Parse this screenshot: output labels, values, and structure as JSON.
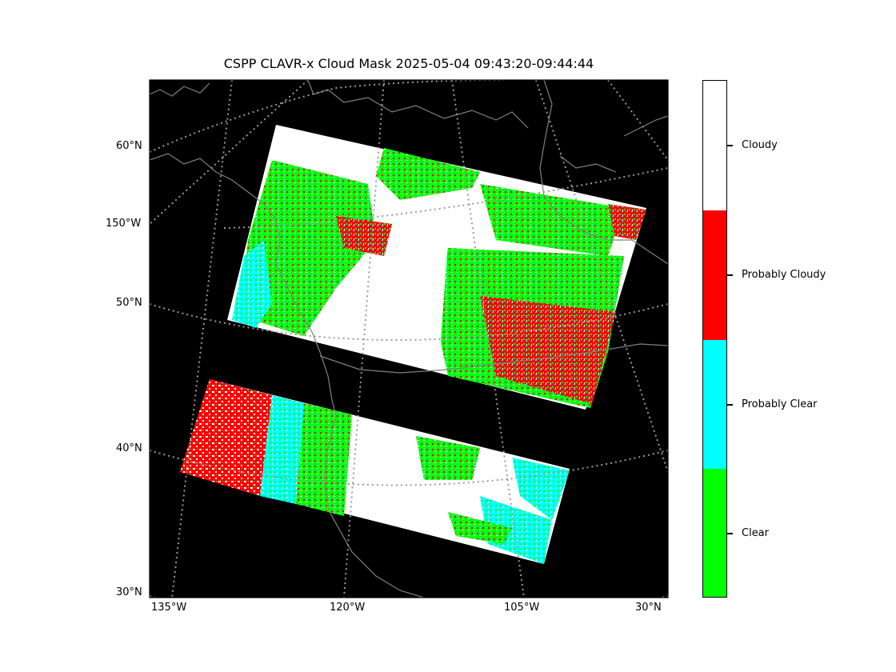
{
  "title": "CSPP CLAVR-x Cloud Mask 2025-05-04 09:43:20-09:44:44",
  "lat_labels": [
    "60°N",
    "150°W",
    "50°N",
    "40°N",
    "30°N"
  ],
  "lon_labels": [
    "135°W",
    "120°W",
    "105°W",
    "30°N"
  ],
  "colorbar": {
    "categories": [
      {
        "label": "Cloudy",
        "color": "#ffffff"
      },
      {
        "label": "Probably Cloudy",
        "color": "#ff0000"
      },
      {
        "label": "Probably Clear",
        "color": "#00ffff"
      },
      {
        "label": "Clear",
        "color": "#00ff00"
      }
    ]
  },
  "colors": {
    "background": "#000000",
    "coastline": "#808080",
    "gridline": "#9a9a9a"
  }
}
